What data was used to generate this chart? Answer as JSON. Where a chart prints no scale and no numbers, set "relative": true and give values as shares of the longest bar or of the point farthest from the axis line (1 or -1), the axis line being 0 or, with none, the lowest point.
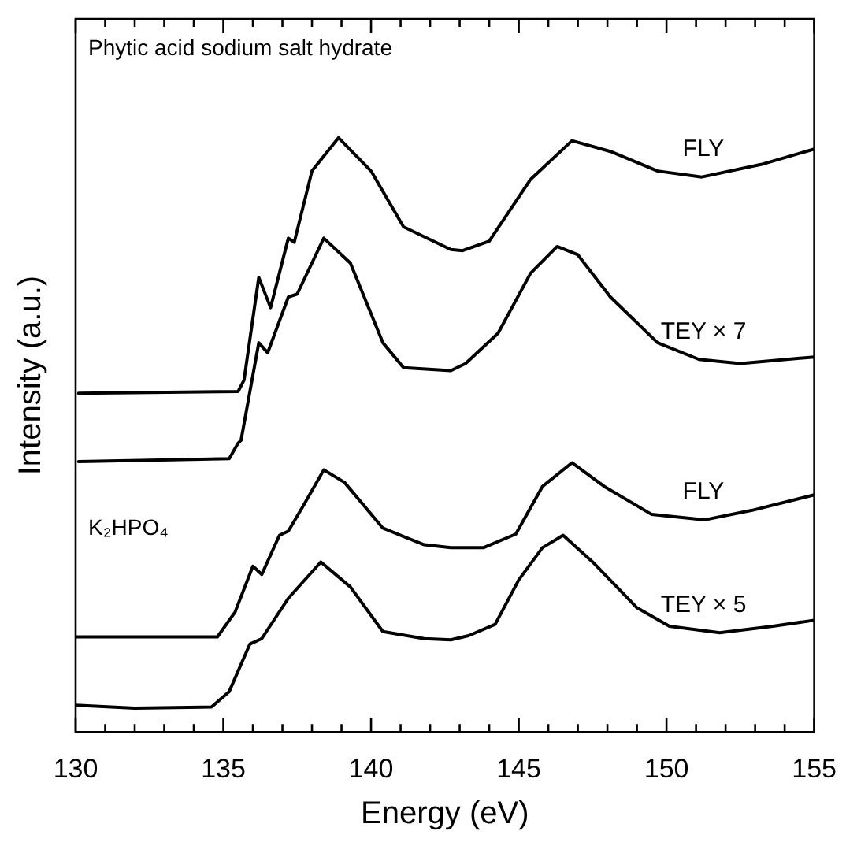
{
  "chart_data": {
    "type": "line",
    "relative": true,
    "xlabel": "Energy (eV)",
    "ylabel": "Intensity (a.u.)",
    "xlim": [
      130,
      155
    ],
    "xticks": [
      130,
      {
        "value": 131,
        "label": null
      },
      {
        "value": 132,
        "label": null
      },
      {
        "value": 133,
        "label": null
      },
      {
        "value": 134,
        "label": null
      },
      135,
      {
        "value": 136,
        "label": null
      },
      {
        "value": 137,
        "label": null
      },
      {
        "value": 138,
        "label": null
      },
      {
        "value": 139,
        "label": null
      },
      140,
      {
        "value": 141,
        "label": null
      },
      {
        "value": 142,
        "label": null
      },
      {
        "value": 143,
        "label": null
      },
      {
        "value": 144,
        "label": null
      },
      145,
      {
        "value": 146,
        "label": null
      },
      {
        "value": 147,
        "label": null
      },
      {
        "value": 148,
        "label": null
      },
      {
        "value": 149,
        "label": null
      },
      150,
      {
        "value": 151,
        "label": null
      },
      {
        "value": 152,
        "label": null
      },
      {
        "value": 153,
        "label": null
      },
      {
        "value": 154,
        "label": null
      },
      155
    ],
    "annotations": [
      "Phytic acid sodium salt hydrate",
      "K₂HPO₄"
    ],
    "marker": "none",
    "line_style": "solid",
    "series": [
      {
        "name": "FLY",
        "color": "#000000",
        "x": [
          130.1,
          135.5,
          135.7,
          136.2,
          136.6,
          137.2,
          137.4,
          138.0,
          138.9,
          140.0,
          141.1,
          142.7,
          143.1,
          144.0,
          145.4,
          146.8,
          148.1,
          149.7,
          151.2,
          153.2,
          155.0
        ],
        "values": [
          0.57,
          0.573,
          0.592,
          0.765,
          0.714,
          0.831,
          0.824,
          0.944,
          1.0,
          0.944,
          0.85,
          0.812,
          0.81,
          0.826,
          0.93,
          0.995,
          0.977,
          0.944,
          0.934,
          0.955,
          0.981
        ]
      },
      {
        "name": "TEY × 7",
        "color": "#000000",
        "x": [
          130.1,
          135.2,
          135.5,
          135.6,
          136.2,
          136.5,
          137.2,
          137.5,
          138.4,
          139.3,
          140.4,
          141.1,
          142.7,
          143.2,
          144.3,
          145.4,
          146.3,
          147.0,
          148.1,
          149.7,
          151.1,
          152.5,
          155.0
        ],
        "values": [
          0.455,
          0.46,
          0.486,
          0.491,
          0.655,
          0.638,
          0.732,
          0.737,
          0.831,
          0.789,
          0.655,
          0.613,
          0.608,
          0.62,
          0.671,
          0.772,
          0.817,
          0.803,
          0.732,
          0.655,
          0.627,
          0.62,
          0.631
        ]
      },
      {
        "name": "FLY",
        "color": "#000000",
        "x": [
          130.0,
          134.8,
          135.4,
          136.0,
          136.3,
          136.9,
          137.2,
          137.7,
          138.4,
          139.1,
          140.4,
          141.8,
          142.7,
          143.8,
          144.9,
          145.8,
          146.8,
          147.9,
          149.5,
          151.3,
          152.9,
          155.0
        ],
        "values": [
          0.16,
          0.16,
          0.202,
          0.279,
          0.265,
          0.331,
          0.338,
          0.38,
          0.441,
          0.42,
          0.343,
          0.315,
          0.31,
          0.31,
          0.333,
          0.413,
          0.453,
          0.413,
          0.366,
          0.357,
          0.373,
          0.399
        ]
      },
      {
        "name": "TEY × 5",
        "color": "#000000",
        "x": [
          130.0,
          132.0,
          134.6,
          135.2,
          135.9,
          136.3,
          137.2,
          138.3,
          139.3,
          140.4,
          141.8,
          142.7,
          143.3,
          144.2,
          145.0,
          145.8,
          146.5,
          147.5,
          149.0,
          150.1,
          151.8,
          153.6,
          155.0
        ],
        "values": [
          0.045,
          0.04,
          0.042,
          0.068,
          0.148,
          0.157,
          0.225,
          0.286,
          0.244,
          0.169,
          0.157,
          0.155,
          0.162,
          0.181,
          0.256,
          0.31,
          0.331,
          0.286,
          0.209,
          0.178,
          0.167,
          0.178,
          0.188
        ]
      }
    ]
  }
}
